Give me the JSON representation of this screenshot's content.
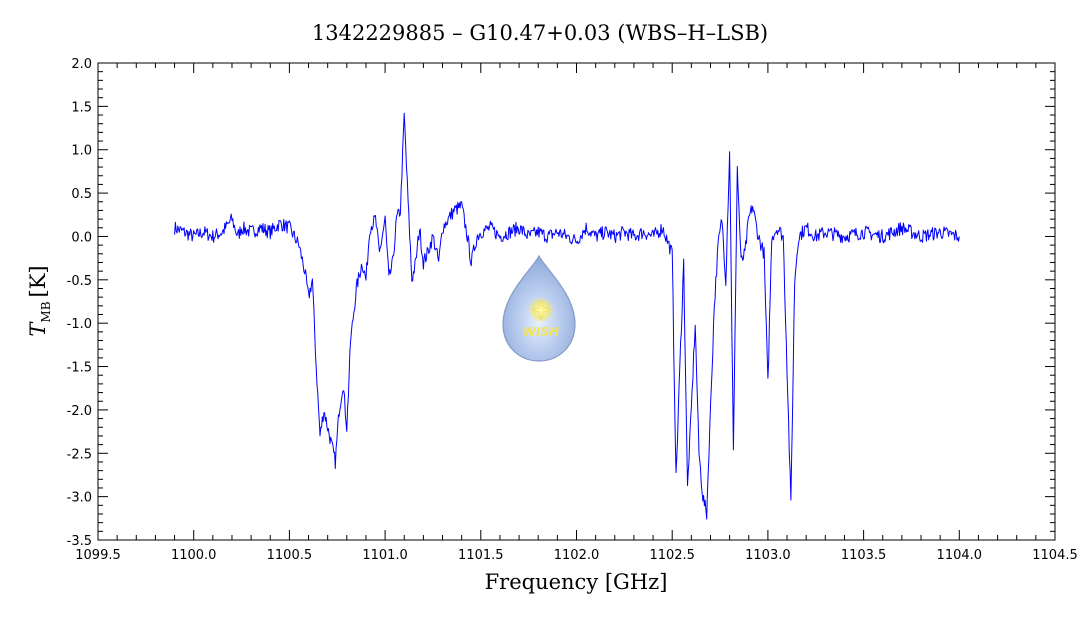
{
  "chart_data": {
    "type": "line",
    "title": "1342229885 – G10.47+0.03 (WBS–H–LSB)",
    "xlabel": "Frequency [GHz]",
    "ylabel_main": "T",
    "ylabel_sub": "MB",
    "ylabel_unit": "[K]",
    "xlim": [
      1099.5,
      1104.5
    ],
    "ylim": [
      -3.5,
      2.0
    ],
    "xticks": [
      1099.5,
      1100.0,
      1100.5,
      1101.0,
      1101.5,
      1102.0,
      1102.5,
      1103.0,
      1103.5,
      1104.0,
      1104.5
    ],
    "xtick_labels": [
      "1099.5",
      "1100.0",
      "1100.5",
      "1101.0",
      "1101.5",
      "1102.0",
      "1102.5",
      "1103.0",
      "1103.5",
      "1104.0",
      "1104.5"
    ],
    "yticks": [
      -3.5,
      -3.0,
      -2.5,
      -2.0,
      -1.5,
      -1.0,
      -0.5,
      0.0,
      0.5,
      1.0,
      1.5,
      2.0
    ],
    "ytick_labels": [
      "-3.5",
      "-3.0",
      "-2.5",
      "-2.0",
      "-1.5",
      "-1.0",
      "-0.5",
      "0.0",
      "0.5",
      "1.0",
      "1.5",
      "2.0"
    ],
    "grid": false,
    "series": [
      {
        "color": "#0000ff",
        "x": [
          1099.9,
          1099.95,
          1100.0,
          1100.05,
          1100.1,
          1100.15,
          1100.2,
          1100.23,
          1100.25,
          1100.3,
          1100.35,
          1100.4,
          1100.45,
          1100.5,
          1100.55,
          1100.58,
          1100.6,
          1100.62,
          1100.64,
          1100.66,
          1100.68,
          1100.7,
          1100.72,
          1100.74,
          1100.76,
          1100.78,
          1100.8,
          1100.82,
          1100.85,
          1100.88,
          1100.9,
          1100.92,
          1100.95,
          1100.97,
          1101.0,
          1101.02,
          1101.04,
          1101.06,
          1101.08,
          1101.1,
          1101.12,
          1101.14,
          1101.16,
          1101.18,
          1101.2,
          1101.22,
          1101.25,
          1101.28,
          1101.3,
          1101.33,
          1101.36,
          1101.4,
          1101.43,
          1101.45,
          1101.48,
          1101.5,
          1101.55,
          1101.6,
          1101.65,
          1101.7,
          1101.75,
          1101.8,
          1101.85,
          1101.9,
          1101.95,
          1102.0,
          1102.05,
          1102.1,
          1102.15,
          1102.2,
          1102.25,
          1102.3,
          1102.35,
          1102.4,
          1102.45,
          1102.5,
          1102.52,
          1102.54,
          1102.56,
          1102.58,
          1102.6,
          1102.62,
          1102.64,
          1102.66,
          1102.68,
          1102.7,
          1102.72,
          1102.74,
          1102.76,
          1102.78,
          1102.8,
          1102.82,
          1102.84,
          1102.86,
          1102.88,
          1102.9,
          1102.92,
          1102.95,
          1102.98,
          1103.0,
          1103.02,
          1103.05,
          1103.08,
          1103.1,
          1103.12,
          1103.14,
          1103.16,
          1103.2,
          1103.25,
          1103.3,
          1103.4,
          1103.5,
          1103.6,
          1103.7,
          1103.8,
          1103.9,
          1104.0
        ],
        "y": [
          0.1,
          0.05,
          0.0,
          0.05,
          0.0,
          0.05,
          0.2,
          0.0,
          0.1,
          0.05,
          0.1,
          0.05,
          0.15,
          0.1,
          -0.1,
          -0.4,
          -0.7,
          -0.5,
          -1.5,
          -2.3,
          -2.0,
          -2.2,
          -2.4,
          -2.6,
          -2.0,
          -1.7,
          -2.2,
          -1.2,
          -0.6,
          -0.3,
          -0.5,
          0.1,
          0.2,
          -0.2,
          0.2,
          -0.5,
          -0.3,
          0.2,
          0.3,
          1.4,
          0.4,
          -0.5,
          -0.3,
          0.1,
          -0.3,
          -0.2,
          0.0,
          -0.3,
          0.1,
          0.2,
          0.3,
          0.35,
          0.0,
          -0.3,
          0.0,
          0.05,
          0.1,
          0.0,
          0.05,
          0.1,
          0.0,
          0.05,
          0.0,
          0.05,
          0.0,
          -0.05,
          0.1,
          0.0,
          0.05,
          0.0,
          0.05,
          0.0,
          0.05,
          0.0,
          0.1,
          -0.2,
          -2.8,
          -1.5,
          -0.3,
          -2.9,
          -2.0,
          -1.0,
          -2.5,
          -3.0,
          -3.2,
          -2.0,
          -0.8,
          -0.1,
          0.2,
          -0.5,
          1.0,
          -2.5,
          0.8,
          -0.3,
          -0.2,
          0.2,
          0.35,
          0.0,
          -0.2,
          -1.7,
          0.0,
          0.1,
          0.0,
          -1.5,
          -3.1,
          -0.5,
          0.0,
          0.1,
          0.0,
          0.05,
          0.0,
          0.05,
          0.0,
          0.1,
          0.0,
          0.05,
          0.0
        ]
      }
    ]
  },
  "watermark": {
    "text": "WISH",
    "icon": "wish-droplet-logo"
  }
}
